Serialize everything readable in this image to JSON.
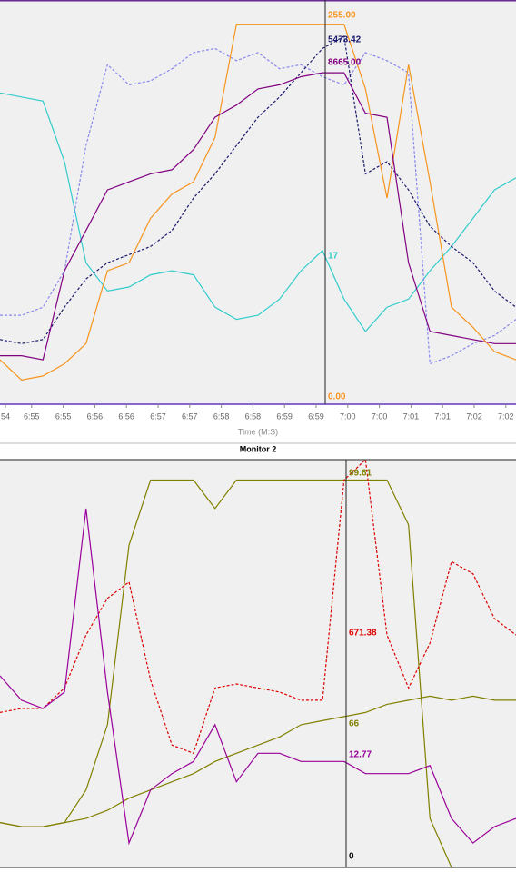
{
  "chart_data": [
    {
      "type": "line",
      "ylim": [
        0,
        100
      ],
      "x_title": "Time (M:S)",
      "xtick_labels": [
        "54",
        "6:55",
        "6:55",
        "6:56",
        "6:56",
        "6:57",
        "6:57",
        "6:58",
        "6:58",
        "6:59",
        "6:59",
        "7:00",
        "7:00",
        "7:01",
        "7:01",
        "7:02",
        "7:02"
      ],
      "series": [
        {
          "color": "#33cccc",
          "dash": false,
          "values": [
            77,
            76,
            75,
            60,
            35,
            28,
            29,
            32,
            33,
            32,
            24,
            21,
            22,
            26,
            33,
            38,
            26,
            18,
            24,
            26,
            33,
            39,
            46,
            53,
            56
          ]
        },
        {
          "color": "#8888ee",
          "dash": true,
          "values": [
            22,
            22,
            24,
            33,
            64,
            84,
            79,
            80,
            83,
            87,
            88,
            85,
            87,
            83,
            84,
            81,
            79,
            87,
            85,
            82,
            10,
            12,
            15,
            17,
            21
          ]
        },
        {
          "color": "#1a1a6e",
          "dash": true,
          "values": [
            16,
            15,
            16,
            24,
            31,
            35,
            37,
            39,
            43,
            51,
            57,
            64,
            71,
            76,
            82,
            88,
            91,
            57,
            60,
            53,
            44,
            39,
            35,
            28,
            24
          ]
        },
        {
          "color": "#f7941d",
          "dash": false,
          "values": [
            11,
            6,
            7,
            10,
            15,
            33,
            35,
            46,
            52,
            55,
            66,
            94,
            94,
            94,
            94,
            94,
            94,
            78,
            51,
            84,
            55,
            24,
            19,
            13,
            11
          ]
        },
        {
          "color": "#800080",
          "dash": false,
          "values": [
            12,
            12,
            11,
            33,
            43,
            53,
            55,
            57,
            58,
            63,
            71,
            74,
            78,
            79,
            81,
            82,
            82,
            72,
            71,
            35,
            18,
            17,
            16,
            15,
            15
          ]
        }
      ],
      "cursor_labels": [
        {
          "text": "255.00",
          "color": "#f7941d"
        },
        {
          "text": "5473.42",
          "color": "#1a1a6e"
        },
        {
          "text": "8665.00",
          "color": "#800080"
        },
        {
          "text": "17",
          "color": "#33cccc"
        },
        {
          "text": "0.00",
          "color": "#f7941d"
        }
      ]
    },
    {
      "type": "line",
      "title": "Monitor 2",
      "ylim": [
        0,
        100
      ],
      "series": [
        {
          "color": "#808000",
          "dash": false,
          "values": [
            11,
            10,
            10,
            11,
            19,
            35,
            79,
            95,
            95,
            95,
            88,
            95,
            95,
            95,
            95,
            95,
            95,
            95,
            95,
            84,
            12,
            0,
            -5,
            -5,
            -5
          ]
        },
        {
          "color": "#808000",
          "dash": false,
          "values": [
            11,
            10,
            10,
            11,
            12,
            14,
            17,
            19,
            21,
            23,
            26,
            28,
            30,
            32,
            35,
            36,
            37,
            38,
            40,
            41,
            42,
            41,
            42,
            41,
            41
          ]
        },
        {
          "color": "#dd0000",
          "dash": true,
          "values": [
            38,
            39,
            39,
            44,
            57,
            66,
            70,
            46,
            30,
            28,
            44,
            45,
            44,
            43,
            41,
            41,
            95,
            100,
            57,
            44,
            55,
            75,
            72,
            61,
            57
          ]
        },
        {
          "color": "#990099",
          "dash": false,
          "values": [
            47,
            41,
            39,
            43,
            88,
            43,
            6,
            19,
            23,
            26,
            35,
            21,
            28,
            28,
            26,
            26,
            26,
            23,
            23,
            23,
            25,
            12,
            6,
            10,
            12
          ]
        }
      ],
      "cursor_labels": [
        {
          "text": "99.61",
          "color": "#808000"
        },
        {
          "text": "671.38",
          "color": "#dd0000"
        },
        {
          "text": "66",
          "color": "#808000"
        },
        {
          "text": "12.77",
          "color": "#990099"
        },
        {
          "text": "0",
          "color": "#000000"
        }
      ]
    }
  ]
}
